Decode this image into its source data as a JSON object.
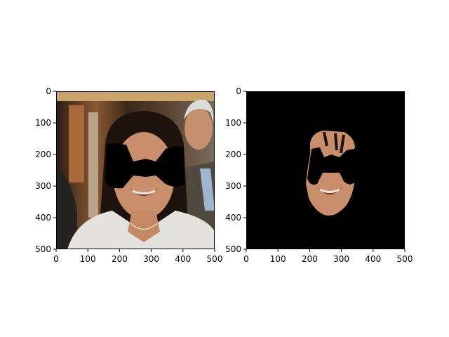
{
  "chart_data": [
    {
      "type": "image",
      "title": "",
      "xlabel": "",
      "ylabel": "",
      "xlim": [
        0,
        500
      ],
      "ylim": [
        500,
        0
      ],
      "xticks": [
        0,
        100,
        200,
        300,
        400,
        500
      ],
      "yticks": [
        0,
        100,
        200,
        300,
        400,
        500
      ],
      "content": "photo of woman with black mask over eyes region",
      "colors": {
        "background_top": "#3a2a1c",
        "mask": "#000000",
        "skin": "#c98f6b",
        "hair": "#1e120c",
        "jacket": "#e4e2dc"
      }
    },
    {
      "type": "image",
      "title": "",
      "xlabel": "",
      "ylabel": "",
      "xlim": [
        0,
        500
      ],
      "ylim": [
        500,
        0
      ],
      "xticks": [
        0,
        100,
        200,
        300,
        400,
        500
      ],
      "yticks": [
        0,
        100,
        200,
        300,
        400,
        500
      ],
      "content": "segmented face region on black background",
      "colors": {
        "background": "#000000",
        "skin": "#c98f6b"
      }
    }
  ]
}
